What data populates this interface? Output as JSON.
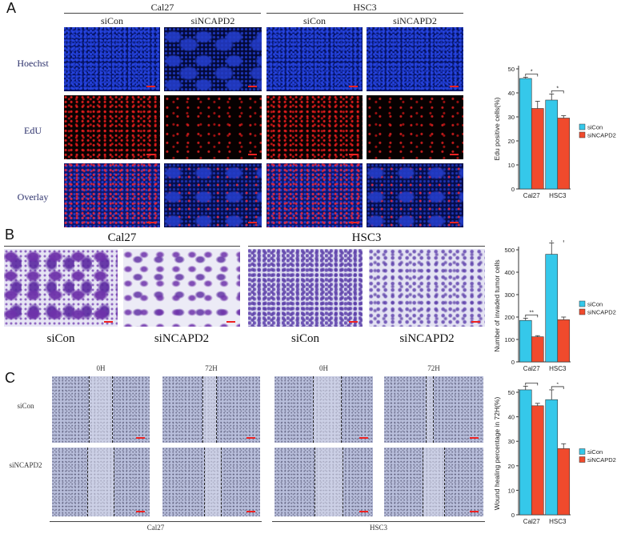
{
  "panelA": {
    "letter": "A",
    "groups": [
      "Cal27",
      "HSC3"
    ],
    "columns": [
      "siCon",
      "siNCAPD2",
      "siCon",
      "siNCAPD2"
    ],
    "rows": [
      "Hoechst",
      "EdU",
      "Overlay"
    ]
  },
  "panelB": {
    "letter": "B",
    "groups": [
      "Cal27",
      "HSC3"
    ],
    "columns": [
      "siCon",
      "siNCAPD2",
      "siCon",
      "siNCAPD2"
    ]
  },
  "panelC": {
    "letter": "C",
    "columns": [
      "0H",
      "72H",
      "0H",
      "72H"
    ],
    "rows": [
      "siCon",
      "siNCAPD2"
    ],
    "groups": [
      "Cal27",
      "HSC3"
    ]
  },
  "chart_data": [
    {
      "type": "bar",
      "ylabel": "Edu positive cells(%)",
      "categories": [
        "Cal27",
        "HSC3"
      ],
      "ylim": [
        0,
        50
      ],
      "yticks": [
        0,
        10,
        20,
        30,
        40,
        50
      ],
      "series": [
        {
          "name": "siCon",
          "values": [
            46,
            37
          ],
          "errors": [
            0.5,
            2.5
          ]
        },
        {
          "name": "siNCAPD2",
          "values": [
            33.5,
            29.5
          ],
          "errors": [
            3,
            1
          ]
        }
      ],
      "significance": [
        "*",
        "*"
      ],
      "colors": [
        "#35c8ea",
        "#f04a2c"
      ],
      "legend": "right"
    },
    {
      "type": "bar",
      "ylabel": "Number of invaded tumor cells",
      "categories": [
        "Cal27",
        "HSC3"
      ],
      "ylim": [
        0,
        500
      ],
      "yticks": [
        0,
        100,
        200,
        300,
        400,
        500
      ],
      "series": [
        {
          "name": "siCon",
          "values": [
            185,
            480
          ],
          "errors": [
            10,
            50
          ]
        },
        {
          "name": "siNCAPD2",
          "values": [
            112,
            188
          ],
          "errors": [
            5,
            12
          ]
        }
      ],
      "significance": [
        "**",
        "**"
      ],
      "colors": [
        "#35c8ea",
        "#f04a2c"
      ],
      "legend": "right"
    },
    {
      "type": "bar",
      "ylabel": "Wound healing percentage in 72H(%)",
      "categories": [
        "Cal27",
        "HSC3"
      ],
      "ylim": [
        0,
        50
      ],
      "yticks": [
        0,
        10,
        20,
        30,
        40,
        50
      ],
      "series": [
        {
          "name": "siCon",
          "values": [
            51,
            47
          ],
          "errors": [
            1.5,
            4
          ]
        },
        {
          "name": "siNCAPD2",
          "values": [
            44.5,
            27
          ],
          "errors": [
            1,
            2
          ]
        }
      ],
      "significance": [
        "*",
        "*"
      ],
      "colors": [
        "#35c8ea",
        "#f04a2c"
      ],
      "legend": "right"
    }
  ]
}
